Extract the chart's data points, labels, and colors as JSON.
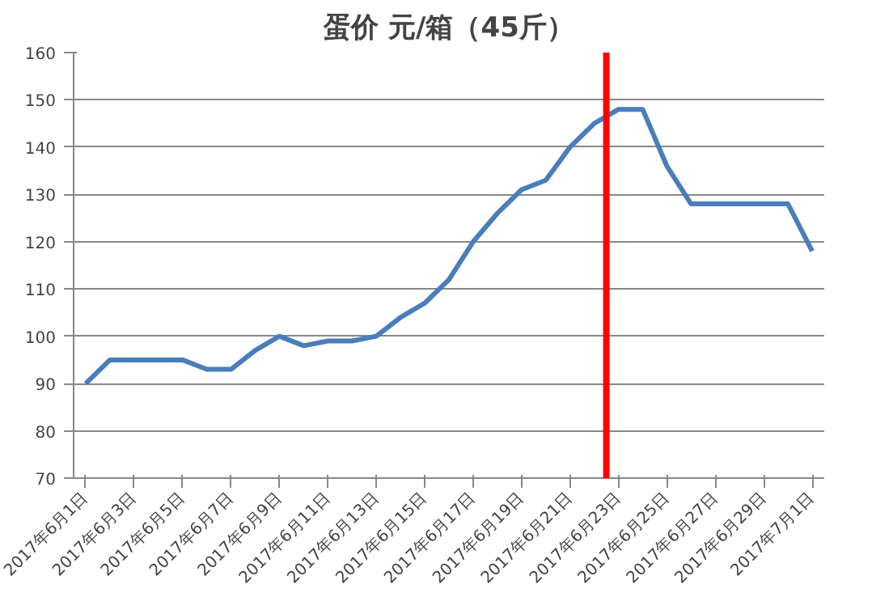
{
  "chart_data": {
    "type": "line",
    "title": "蛋价 元/箱（45斤）",
    "x": [
      "2017-06-01",
      "2017-06-02",
      "2017-06-03",
      "2017-06-04",
      "2017-06-05",
      "2017-06-06",
      "2017-06-07",
      "2017-06-08",
      "2017-06-09",
      "2017-06-10",
      "2017-06-11",
      "2017-06-12",
      "2017-06-13",
      "2017-06-14",
      "2017-06-15",
      "2017-06-16",
      "2017-06-17",
      "2017-06-18",
      "2017-06-19",
      "2017-06-20",
      "2017-06-21",
      "2017-06-22",
      "2017-06-23",
      "2017-06-24",
      "2017-06-25",
      "2017-06-26",
      "2017-06-27",
      "2017-06-28",
      "2017-06-29",
      "2017-06-30",
      "2017-07-01"
    ],
    "series": [
      {
        "color": "#4a7ebb",
        "values": [
          90,
          95,
          95,
          95,
          95,
          93,
          93,
          97,
          100,
          98,
          99,
          99,
          100,
          104,
          107,
          112,
          120,
          126,
          131,
          133,
          140,
          145,
          148,
          148,
          136,
          128,
          128,
          128,
          128,
          128,
          118
        ]
      }
    ],
    "xlim": [
      "2017-05-31T12:00",
      "2017-07-01T12:00"
    ],
    "xticks": [
      {
        "value": "2017-06-01",
        "label": "2017年6月1日"
      },
      {
        "value": "2017-06-03",
        "label": "2017年6月3日"
      },
      {
        "value": "2017-06-05",
        "label": "2017年6月5日"
      },
      {
        "value": "2017-06-07",
        "label": "2017年6月7日"
      },
      {
        "value": "2017-06-09",
        "label": "2017年6月9日"
      },
      {
        "value": "2017-06-11",
        "label": "2017年6月11日"
      },
      {
        "value": "2017-06-13",
        "label": "2017年6月13日"
      },
      {
        "value": "2017-06-15",
        "label": "2017年6月15日"
      },
      {
        "value": "2017-06-17",
        "label": "2017年6月17日"
      },
      {
        "value": "2017-06-19",
        "label": "2017年6月19日"
      },
      {
        "value": "2017-06-21",
        "label": "2017年6月21日"
      },
      {
        "value": "2017-06-23",
        "label": "2017年6月23日"
      },
      {
        "value": "2017-06-25",
        "label": "2017年6月25日"
      },
      {
        "value": "2017-06-27",
        "label": "2017年6月27日"
      },
      {
        "value": "2017-06-29",
        "label": "2017年6月29日"
      },
      {
        "value": "2017-07-01",
        "label": "2017年7月1日"
      }
    ],
    "ylim": [
      70,
      160
    ],
    "yticks": [
      70,
      80,
      90,
      100,
      110,
      120,
      130,
      140,
      150,
      160
    ],
    "grid": "y",
    "marker": "none",
    "line_style": "solid",
    "ref_lines": [
      {
        "axis": "x",
        "value": "2017-06-22T12:00",
        "color": "#ff0000",
        "line_style": "solid"
      }
    ]
  }
}
